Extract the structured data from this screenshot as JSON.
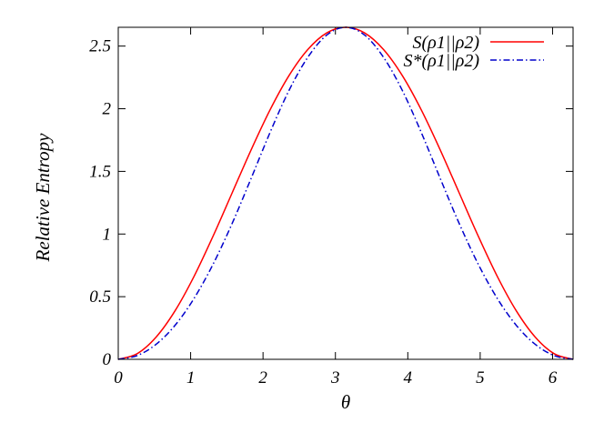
{
  "chart_data": {
    "type": "line",
    "title": "",
    "xlabel": "θ",
    "ylabel": "Relative Entropy",
    "xlim": [
      0,
      6.2832
    ],
    "ylim": [
      0,
      2.65
    ],
    "x_ticks": [
      0,
      1,
      2,
      3,
      4,
      5,
      6
    ],
    "x_tick_labels": [
      "0",
      "1",
      "2",
      "3",
      "4",
      "5",
      "6"
    ],
    "y_ticks": [
      0,
      0.5,
      1,
      1.5,
      2,
      2.5
    ],
    "y_tick_labels": [
      "0",
      "0.5",
      "1",
      "1.5",
      "2",
      "2.5"
    ],
    "grid": false,
    "legend_position": "top-right",
    "x": [
      0,
      0.2618,
      0.5236,
      0.7854,
      1.0472,
      1.309,
      1.5708,
      1.8326,
      2.0944,
      2.3562,
      2.618,
      2.8798,
      3.1416,
      3.4034,
      3.6652,
      3.927,
      4.1888,
      4.4506,
      4.7124,
      4.9742,
      5.236,
      5.4978,
      5.7596,
      6.0214,
      6.2832
    ],
    "series": [
      {
        "name": "S(ρ1||ρ2)",
        "color": "#ff0000",
        "style": "solid",
        "values": [
          0,
          0.045,
          0.178,
          0.388,
          0.662,
          0.982,
          1.325,
          1.668,
          1.988,
          2.262,
          2.472,
          2.605,
          2.65,
          2.605,
          2.472,
          2.262,
          1.988,
          1.668,
          1.325,
          0.982,
          0.662,
          0.388,
          0.178,
          0.045,
          0
        ]
      },
      {
        "name": "S*(ρ1||ρ2)",
        "color": "#0000cc",
        "style": "dash-dot",
        "values": [
          0,
          0.03,
          0.12,
          0.272,
          0.486,
          0.758,
          1.081,
          1.44,
          1.807,
          2.143,
          2.41,
          2.588,
          2.65,
          2.588,
          2.41,
          2.143,
          1.807,
          1.44,
          1.081,
          0.758,
          0.486,
          0.272,
          0.12,
          0.03,
          0
        ]
      }
    ]
  }
}
